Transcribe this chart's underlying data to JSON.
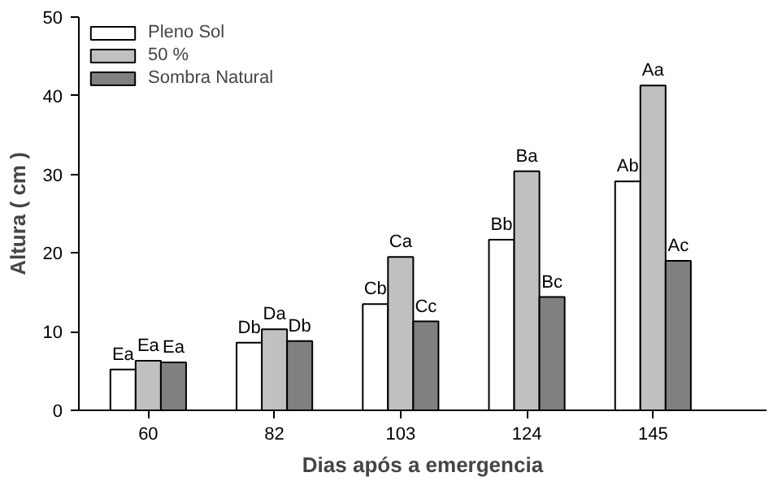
{
  "chart_data": {
    "type": "bar",
    "xlabel": "Dias após a emergencia",
    "ylabel": "Altura ( cm )",
    "categories": [
      "60",
      "82",
      "103",
      "124",
      "145"
    ],
    "series": [
      {
        "name": "Pleno Sol",
        "color": "#ffffff",
        "values": [
          5.2,
          8.6,
          13.5,
          21.7,
          29.1
        ],
        "value_labels": [
          "Ea",
          "Db",
          "Cb",
          "Bb",
          "Ab"
        ]
      },
      {
        "name": "50 %",
        "color": "#c0c0c0",
        "values": [
          6.3,
          10.3,
          19.5,
          30.4,
          41.3
        ],
        "value_labels": [
          "Ea",
          "Da",
          "Ca",
          "Ba",
          "Aa"
        ]
      },
      {
        "name": "Sombra Natural",
        "color": "#808080",
        "values": [
          6.1,
          8.8,
          11.3,
          14.4,
          19.0
        ],
        "value_labels": [
          "Ea",
          "Db",
          "Cc",
          "Bc",
          "Ac"
        ]
      }
    ],
    "ylim": [
      0,
      50
    ],
    "yticks": [
      0,
      10,
      20,
      30,
      40,
      50
    ],
    "grid": false,
    "legend": "top left"
  }
}
